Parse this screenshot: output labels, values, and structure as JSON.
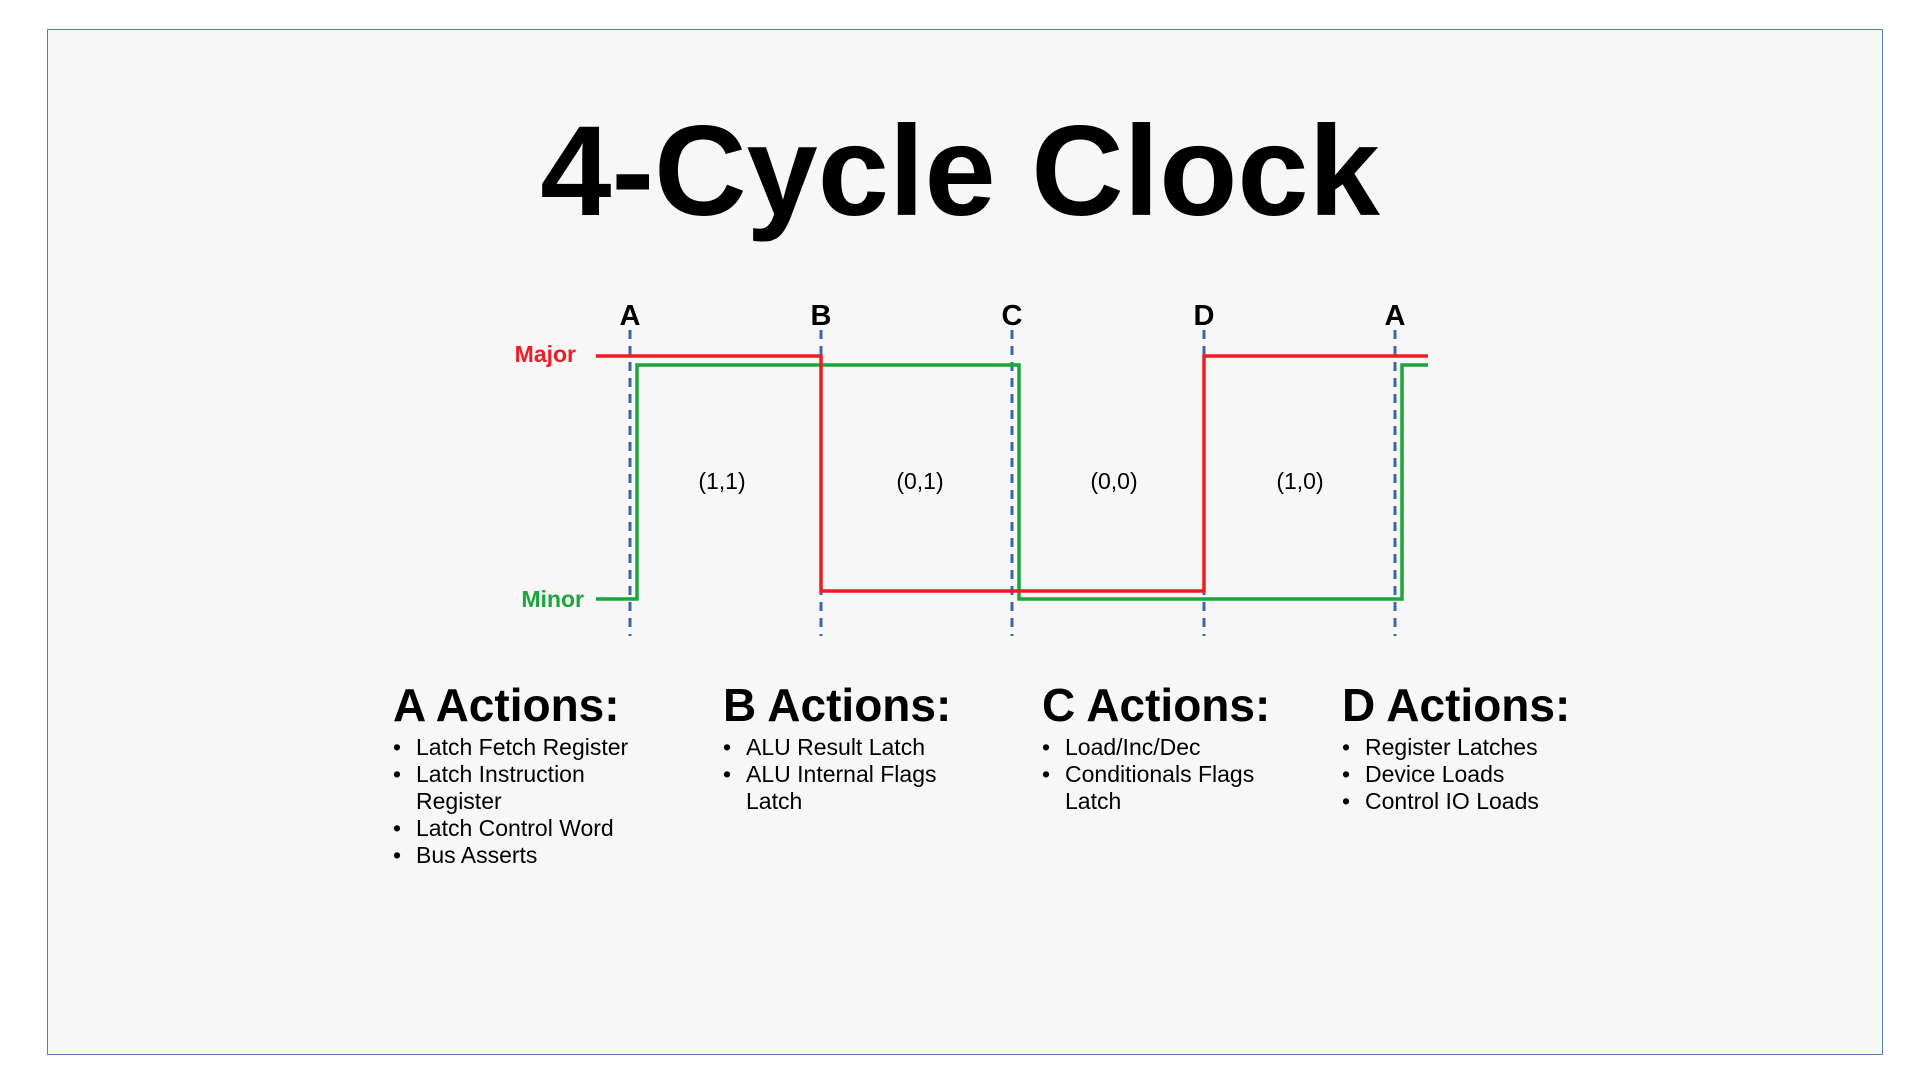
{
  "title": "4-Cycle Clock",
  "diagram": {
    "phase_markers": [
      "A",
      "B",
      "C",
      "D",
      "A"
    ],
    "signals": [
      {
        "name": "Major",
        "color": "#ee1c24"
      },
      {
        "name": "Minor",
        "color": "#1aa63a"
      }
    ],
    "states": [
      "(1,1)",
      "(0,1)",
      "(0,0)",
      "(1,0)"
    ],
    "marker_line_color": "#3f67a6"
  },
  "actions": [
    {
      "heading": "A Actions:",
      "items": [
        "Latch Fetch Register",
        "Latch Instruction Register",
        "Latch Control Word",
        "Bus Asserts"
      ]
    },
    {
      "heading": "B Actions:",
      "items": [
        "ALU Result Latch",
        "ALU Internal Flags Latch"
      ]
    },
    {
      "heading": "C Actions:",
      "items": [
        "Load/Inc/Dec",
        "Conditionals Flags Latch"
      ]
    },
    {
      "heading": "D Actions:",
      "items": [
        "Register Latches",
        "Device Loads",
        "Control IO Loads"
      ]
    }
  ]
}
